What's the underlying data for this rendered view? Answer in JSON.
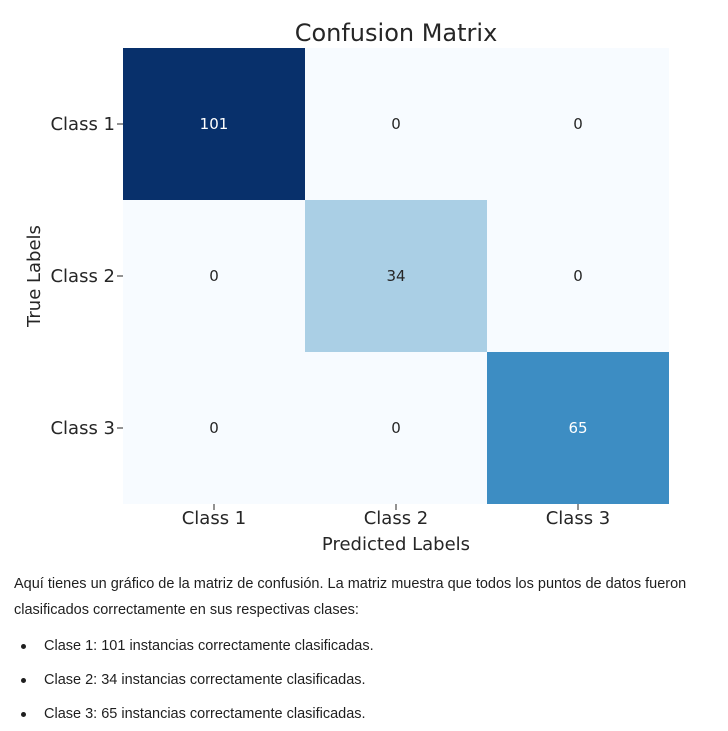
{
  "chart_data": {
    "type": "heatmap",
    "title": "Confusion Matrix",
    "xlabel": "Predicted Labels",
    "ylabel": "True Labels",
    "x_categories": [
      "Class 1",
      "Class 2",
      "Class 3"
    ],
    "y_categories": [
      "Class 1",
      "Class 2",
      "Class 3"
    ],
    "values": [
      [
        101,
        0,
        0
      ],
      [
        0,
        34,
        0
      ],
      [
        0,
        0,
        65
      ]
    ],
    "colormap": "Blues",
    "range": [
      0,
      101
    ],
    "colorbar": false,
    "grid": false
  },
  "text": {
    "intro": "Aquí tienes un gráfico de la matriz de confusión. La matriz muestra que todos los puntos de datos fueron clasificados correctamente en sus respectivas clases:",
    "bullets": [
      "Clase 1: 101 instancias correctamente clasificadas.",
      "Clase 2: 34 instancias correctamente clasificadas.",
      "Clase 3: 65 instancias correctamente clasificadas."
    ]
  }
}
